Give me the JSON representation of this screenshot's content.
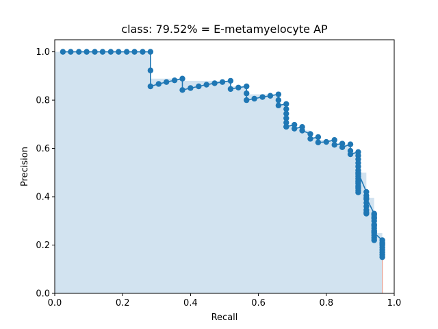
{
  "chart_data": {
    "type": "line",
    "title": "class: 79.52% = E-metamyelocyte AP",
    "xlabel": "Recall",
    "ylabel": "Precision",
    "xlim": [
      0,
      1
    ],
    "ylim": [
      0,
      1.05
    ],
    "x_ticks": [
      "0.0",
      "0.2",
      "0.4",
      "0.6",
      "0.8",
      "1.0"
    ],
    "y_ticks": [
      "0.0",
      "0.2",
      "0.4",
      "0.6",
      "0.8",
      "1.0"
    ],
    "grid": false,
    "colors": {
      "line": "#1f77b4",
      "fill": "#d2e3f0",
      "edge": "#e8a090"
    },
    "series": [
      {
        "x": [
          0.024,
          0.047,
          0.071,
          0.094,
          0.118,
          0.141,
          0.165,
          0.188,
          0.212,
          0.235,
          0.259,
          0.282,
          0.282,
          0.282,
          0.306,
          0.329,
          0.353,
          0.376,
          0.376,
          0.4,
          0.424,
          0.447,
          0.471,
          0.494,
          0.518,
          0.518,
          0.541,
          0.565,
          0.565,
          0.565,
          0.588,
          0.612,
          0.635,
          0.659,
          0.659,
          0.659,
          0.682,
          0.682,
          0.682,
          0.682,
          0.682,
          0.682,
          0.682,
          0.706,
          0.706,
          0.729,
          0.729,
          0.753,
          0.753,
          0.776,
          0.776,
          0.8,
          0.824,
          0.824,
          0.847,
          0.847,
          0.871,
          0.871,
          0.871,
          0.894,
          0.894,
          0.894,
          0.894,
          0.894,
          0.894,
          0.894,
          0.894,
          0.894,
          0.894,
          0.894,
          0.894,
          0.894,
          0.894,
          0.894,
          0.894,
          0.894,
          0.894,
          0.918,
          0.918,
          0.918,
          0.918,
          0.918,
          0.918,
          0.918,
          0.918,
          0.918,
          0.941,
          0.941,
          0.941,
          0.941,
          0.941,
          0.941,
          0.941,
          0.941,
          0.941,
          0.941,
          0.941,
          0.941,
          0.941,
          0.941,
          0.965,
          0.965,
          0.965,
          0.965,
          0.965,
          0.965,
          0.965,
          0.965,
          0.965
        ],
        "y": [
          1.0,
          1.0,
          1.0,
          1.0,
          1.0,
          1.0,
          1.0,
          1.0,
          1.0,
          1.0,
          1.0,
          1.0,
          0.923,
          0.857,
          0.867,
          0.875,
          0.882,
          0.889,
          0.842,
          0.85,
          0.857,
          0.864,
          0.87,
          0.875,
          0.88,
          0.846,
          0.852,
          0.857,
          0.828,
          0.8,
          0.806,
          0.813,
          0.818,
          0.824,
          0.8,
          0.778,
          0.784,
          0.763,
          0.744,
          0.725,
          0.707,
          0.69,
          0.69,
          0.698,
          0.682,
          0.689,
          0.674,
          0.66,
          0.64,
          0.647,
          0.625,
          0.627,
          0.635,
          0.615,
          0.62,
          0.605,
          0.617,
          0.59,
          0.576,
          0.585,
          0.57,
          0.555,
          0.54,
          0.525,
          0.51,
          0.495,
          0.485,
          0.475,
          0.465,
          0.455,
          0.445,
          0.435,
          0.425,
          0.418,
          0.44,
          0.46,
          0.5,
          0.42,
          0.405,
          0.39,
          0.375,
          0.36,
          0.345,
          0.335,
          0.33,
          0.395,
          0.33,
          0.315,
          0.3,
          0.285,
          0.27,
          0.255,
          0.24,
          0.23,
          0.22,
          0.325,
          0.31,
          0.28,
          0.26,
          0.25,
          0.22,
          0.21,
          0.2,
          0.19,
          0.18,
          0.17,
          0.16,
          0.15,
          0.205
        ]
      }
    ]
  }
}
